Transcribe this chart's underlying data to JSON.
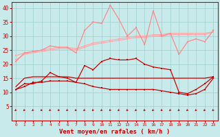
{
  "x": [
    0,
    1,
    2,
    3,
    4,
    5,
    6,
    7,
    8,
    9,
    10,
    11,
    12,
    13,
    14,
    15,
    16,
    17,
    18,
    19,
    20,
    21,
    22,
    23
  ],
  "pink_smooth1": [
    21.5,
    23.5,
    24,
    24.5,
    25,
    25.5,
    25.5,
    25,
    26,
    27,
    27.5,
    28,
    28.5,
    29,
    29.5,
    29.5,
    30,
    30,
    30.5,
    30.5,
    30.5,
    30.5,
    30.5,
    31.5
  ],
  "pink_smooth2": [
    23,
    24,
    24.5,
    25,
    25.5,
    26,
    26,
    25.5,
    26.5,
    27.5,
    28,
    28.5,
    29,
    29.5,
    30,
    30,
    30.5,
    30.5,
    31,
    31,
    31,
    31,
    31,
    31.5
  ],
  "pink_spiky": [
    21,
    24,
    24.5,
    25,
    26.5,
    26,
    26,
    24,
    32,
    35,
    34.5,
    41,
    36,
    30,
    33,
    27,
    39,
    30,
    31,
    23.5,
    28,
    29,
    28,
    32
  ],
  "red_spiky": [
    11,
    13,
    13,
    14,
    17,
    15.5,
    15,
    13.5,
    19.5,
    18,
    21,
    22,
    21.5,
    21.5,
    22,
    20,
    19,
    18.5,
    18,
    10,
    9.5,
    11,
    13,
    15.5
  ],
  "red_flat": [
    12,
    15,
    15.5,
    15.5,
    15.5,
    15.5,
    15.5,
    15,
    15,
    15,
    15,
    15,
    15,
    15,
    15,
    15,
    15,
    15,
    15,
    15,
    15,
    15,
    15,
    15.5
  ],
  "red_decline": [
    11,
    12,
    13.5,
    13.5,
    14,
    14,
    14,
    13.5,
    13,
    12,
    11.5,
    11,
    11,
    11,
    11,
    11,
    11,
    10.5,
    10,
    9.5,
    9,
    9.5,
    11,
    15
  ],
  "bg_color": "#c8eaea",
  "grid_color": "#9ecece",
  "xlabel": "Vent moyen/en rafales ( km/h )",
  "ylim": [
    0,
    42
  ],
  "xlim": [
    -0.5,
    23.5
  ],
  "yticks": [
    5,
    10,
    15,
    20,
    25,
    30,
    35,
    40
  ],
  "xticks": [
    0,
    1,
    2,
    3,
    4,
    5,
    6,
    7,
    8,
    9,
    10,
    11,
    12,
    13,
    14,
    15,
    16,
    17,
    18,
    19,
    20,
    21,
    22,
    23
  ],
  "axis_color": "#cc0000",
  "pink_light": "#ffaaaa",
  "pink_mid": "#ff8888",
  "red_dark": "#cc0000"
}
